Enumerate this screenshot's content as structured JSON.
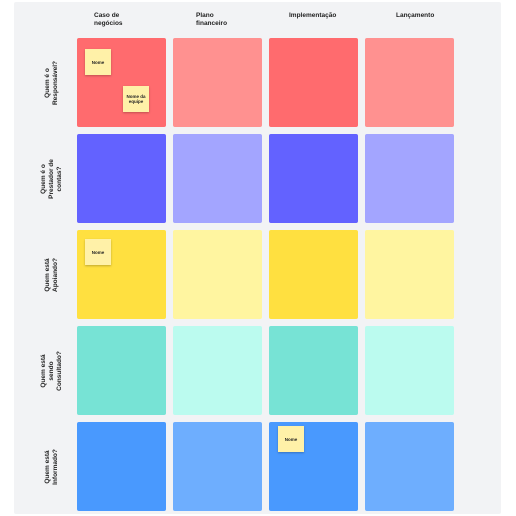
{
  "columns": [
    {
      "label": "Caso de\nnegócios"
    },
    {
      "label": "Plano\nfinanceiro"
    },
    {
      "label": "Implementação"
    },
    {
      "label": "Lançamento"
    }
  ],
  "rows": [
    {
      "label": "Quem é o\nResponsável?",
      "colors": [
        "#ff6b6e",
        "#ff9190",
        "#ff6b6e",
        "#ff9190"
      ]
    },
    {
      "label": "Quem é o\nPrestador de\ncontas?",
      "colors": [
        "#6362ff",
        "#a3a5ff",
        "#6362ff",
        "#a3a5ff"
      ]
    },
    {
      "label": "Quem está\nApoiando?",
      "colors": [
        "#ffe040",
        "#fff5a0",
        "#ffe040",
        "#fff5a0"
      ]
    },
    {
      "label": "Quem está\nsendo\nConsultado?",
      "colors": [
        "#77e3d5",
        "#bbfbef",
        "#77e3d5",
        "#bbfbef"
      ]
    },
    {
      "label": "Quem está\nInformado?",
      "colors": [
        "#4999fe",
        "#6eaefe",
        "#4999fe",
        "#6eaefe"
      ]
    }
  ],
  "stickies": [
    {
      "text": "Nome"
    },
    {
      "text": "Nome da\nequipe"
    },
    {
      "text": "Nome"
    },
    {
      "text": "Nome"
    }
  ]
}
